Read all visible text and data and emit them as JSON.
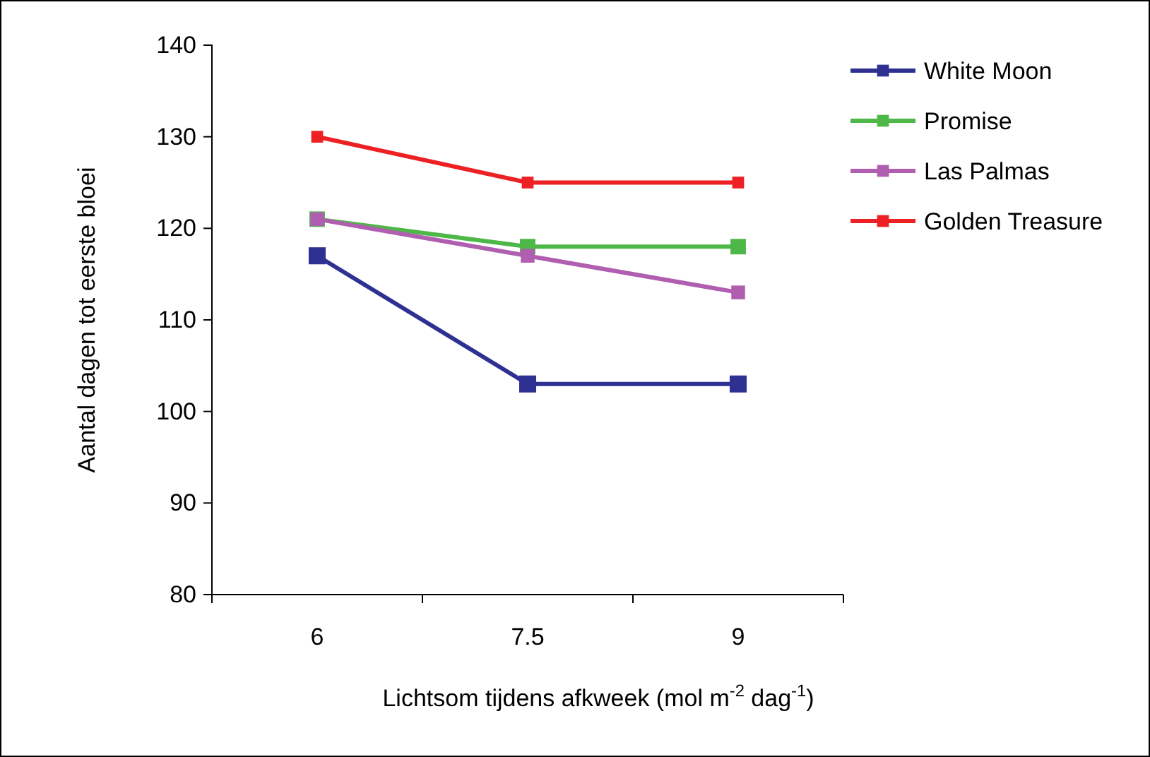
{
  "chart_data": {
    "type": "line",
    "xlabel": "Lichtsom tijdens afkweek (mol m$^{-2}$ dag$^{-1}$)",
    "ylabel": "Aantal dagen tot eerste bloei",
    "categories": [
      "6",
      "7.5",
      "9"
    ],
    "series": [
      {
        "name": "White Moon",
        "color": "#2e3192",
        "values": [
          117,
          103,
          103
        ]
      },
      {
        "name": "Promise",
        "color": "#4db848",
        "values": [
          121,
          118,
          118
        ]
      },
      {
        "name": "Las Palmas",
        "color": "#b05fb0",
        "values": [
          121,
          117,
          113
        ]
      },
      {
        "name": "Golden Treasure",
        "color": "#ed2024",
        "values": [
          130,
          125,
          125
        ]
      }
    ],
    "ylim": [
      80,
      140
    ],
    "yticks": [
      80,
      90,
      100,
      110,
      120,
      130,
      140
    ],
    "grid": false,
    "legend": "right",
    "marker": "square",
    "line_style": "solid"
  }
}
